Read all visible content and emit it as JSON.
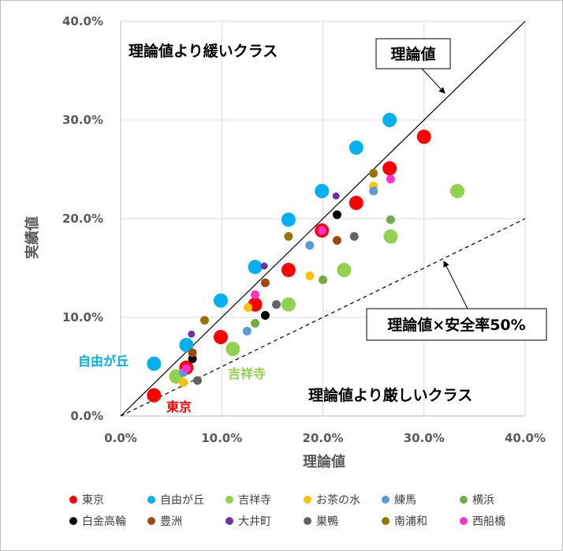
{
  "chart_data": {
    "type": "scatter",
    "xlabel": "理論値",
    "ylabel": "実績値",
    "xlim": [
      0,
      40
    ],
    "ylim": [
      0,
      40
    ],
    "xticks": [
      "0.0%",
      "10.0%",
      "20.0%",
      "30.0%",
      "40.0%"
    ],
    "yticks": [
      "0.0%",
      "10.0%",
      "20.0%",
      "30.0%",
      "40.0%"
    ],
    "grid": true,
    "legend": "bottom",
    "reference_lines": [
      {
        "label": "理論値",
        "slope": 1,
        "style": "solid"
      },
      {
        "label": "理論値×安全率50%",
        "slope": 0.5,
        "style": "dashed"
      }
    ],
    "annotations": {
      "upper": "理論値より緩いクラス",
      "lower": "理論値より厳しいクラス",
      "line1": "理論値",
      "line2": "理論値×安全率50%",
      "tokyo": "東京",
      "jiyugaoka": "自由が丘",
      "kichijoji": "吉祥寺"
    },
    "series": [
      {
        "name": "東京",
        "color": "#FF0000",
        "size": "large",
        "x": [
          3.3,
          6.5,
          9.9,
          13.3,
          16.6,
          19.9,
          23.3,
          26.6,
          30.0
        ],
        "y": [
          2.1,
          4.9,
          8.0,
          11.3,
          14.8,
          18.8,
          21.6,
          25.1,
          28.3
        ]
      },
      {
        "name": "自由が丘",
        "color": "#00B0F0",
        "size": "large",
        "x": [
          3.3,
          6.5,
          9.9,
          13.3,
          16.6,
          19.9,
          23.3,
          26.6
        ],
        "y": [
          5.3,
          7.2,
          11.7,
          15.1,
          19.9,
          22.8,
          27.2,
          30.0
        ]
      },
      {
        "name": "吉祥寺",
        "color": "#92D050",
        "size": "large",
        "x": [
          5.5,
          11.1,
          16.6,
          22.1,
          26.7,
          33.3
        ],
        "y": [
          4.0,
          6.8,
          11.3,
          14.8,
          18.2,
          22.8
        ]
      },
      {
        "name": "お茶の水",
        "color": "#FFC000",
        "size": "small",
        "x": [
          6.2,
          12.6,
          18.7,
          25.0
        ],
        "y": [
          3.4,
          11.0,
          14.2,
          23.3
        ]
      },
      {
        "name": "練馬",
        "color": "#5B9BD5",
        "size": "small",
        "x": [
          6.2,
          12.5,
          18.7,
          25.0
        ],
        "y": [
          4.4,
          8.6,
          17.3,
          22.8
        ]
      },
      {
        "name": "横浜",
        "color": "#70AD47",
        "size": "small",
        "x": [
          13.3,
          20.0,
          26.7
        ],
        "y": [
          9.4,
          13.8,
          19.9
        ]
      },
      {
        "name": "白金高輪",
        "color": "#000000",
        "size": "small",
        "x": [
          7.1,
          14.3,
          21.4
        ],
        "y": [
          5.8,
          10.2,
          20.4
        ]
      },
      {
        "name": "豊洲",
        "color": "#9E480E",
        "size": "small",
        "x": [
          7.1,
          14.3,
          21.4
        ],
        "y": [
          6.4,
          13.5,
          17.8
        ]
      },
      {
        "name": "大井町",
        "color": "#7030A0",
        "size": "tiny",
        "x": [
          7.0,
          14.2,
          21.3
        ],
        "y": [
          8.3,
          15.2,
          22.3
        ]
      },
      {
        "name": "巣鴨",
        "color": "#636363",
        "size": "small",
        "x": [
          7.6,
          15.4,
          23.1
        ],
        "y": [
          3.6,
          11.3,
          18.2
        ]
      },
      {
        "name": "南浦和",
        "color": "#997300",
        "size": "small",
        "x": [
          8.3,
          16.6,
          25.0
        ],
        "y": [
          9.7,
          18.2,
          24.6
        ]
      },
      {
        "name": "西船橋",
        "color": "#FF33CC",
        "size": "small",
        "x": [
          6.5,
          13.3,
          19.9,
          26.7
        ],
        "y": [
          4.8,
          12.3,
          18.8,
          24.0
        ]
      }
    ]
  }
}
